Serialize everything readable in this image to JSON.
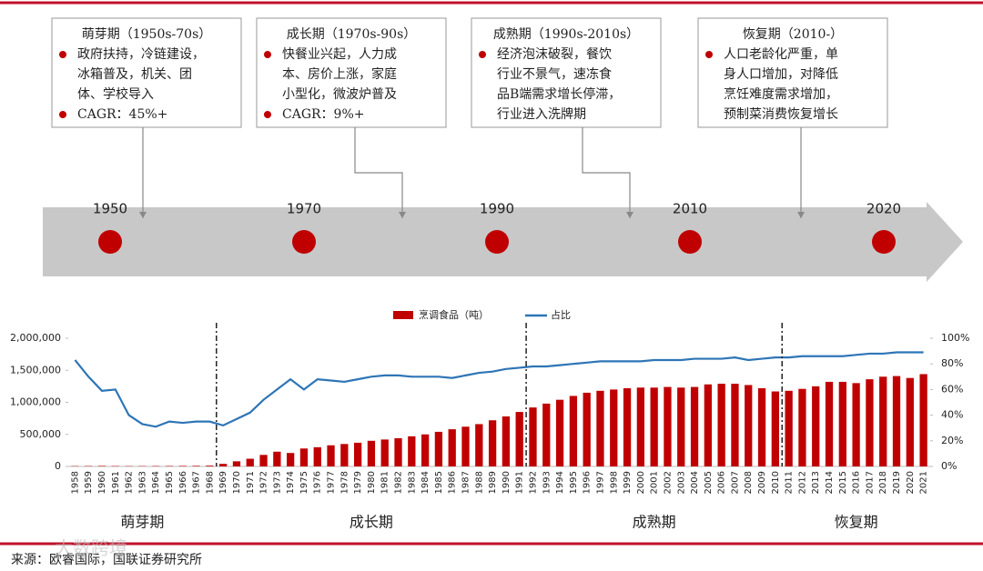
{
  "timeline": {
    "years": [
      "1950",
      "1970",
      "1990",
      "2010",
      "2020"
    ],
    "periods": [
      {
        "title": "萌芽期（1950s-70s）",
        "bullets": [
          {
            "lines": [
              "政府扶持，冷链建设，",
              "冰箱普及，机关、团",
              "体、学校导入"
            ]
          },
          {
            "lines": [
              "CAGR：45%+"
            ]
          }
        ]
      },
      {
        "title": "成长期（1970s-90s）",
        "bullets": [
          {
            "lines": [
              "快餐业兴起，人力成",
              "本、房价上涨，家庭",
              "小型化，微波炉普及"
            ]
          },
          {
            "lines": [
              "CAGR：9%+"
            ]
          }
        ]
      },
      {
        "title": "成熟期（1990s-2010s）",
        "bullets": [
          {
            "lines": [
              "经济泡沫破裂，餐饮",
              "行业不景气，速冻食",
              "品B端需求增长停滞，",
              "行业进入洗牌期"
            ]
          }
        ]
      },
      {
        "title": "恢复期（2010-）",
        "bullets": [
          {
            "lines": [
              "人口老龄化严重，单",
              "身人口增加，对降低",
              "烹饪难度需求增加，",
              "预制菜消费恢复增长"
            ]
          }
        ]
      }
    ]
  },
  "chart_data": {
    "type": "bar_line",
    "categories": [
      "1958",
      "1959",
      "1960",
      "1961",
      "1962",
      "1963",
      "1964",
      "1965",
      "1966",
      "1967",
      "1968",
      "1969",
      "1970",
      "1971",
      "1972",
      "1973",
      "1974",
      "1975",
      "1976",
      "1977",
      "1978",
      "1979",
      "1980",
      "1981",
      "1982",
      "1983",
      "1984",
      "1985",
      "1986",
      "1987",
      "1988",
      "1989",
      "1990",
      "1991",
      "1992",
      "1993",
      "1994",
      "1995",
      "1996",
      "1997",
      "1998",
      "1999",
      "2000",
      "2001",
      "2002",
      "2003",
      "2004",
      "2005",
      "2006",
      "2007",
      "2008",
      "2009",
      "2010",
      "2011",
      "2012",
      "2013",
      "2014",
      "2015",
      "2016",
      "2017",
      "2018",
      "2019",
      "2020",
      "2021"
    ],
    "series": [
      {
        "name": "烹调食品（吨）",
        "kind": "bar",
        "color": "#c00000",
        "values": [
          5000,
          6000,
          8000,
          6000,
          5000,
          5000,
          6000,
          7000,
          8000,
          9000,
          12000,
          40000,
          80000,
          120000,
          180000,
          230000,
          210000,
          280000,
          300000,
          330000,
          350000,
          370000,
          400000,
          420000,
          440000,
          470000,
          500000,
          540000,
          580000,
          620000,
          660000,
          720000,
          780000,
          850000,
          920000,
          980000,
          1040000,
          1100000,
          1150000,
          1180000,
          1200000,
          1220000,
          1230000,
          1230000,
          1240000,
          1230000,
          1240000,
          1280000,
          1290000,
          1290000,
          1270000,
          1220000,
          1170000,
          1180000,
          1210000,
          1250000,
          1320000,
          1320000,
          1300000,
          1360000,
          1400000,
          1410000,
          1380000,
          1440000
        ]
      },
      {
        "name": "占比",
        "kind": "line",
        "axis": "y2",
        "color": "#2e75b6",
        "values": [
          83,
          70,
          59,
          60,
          40,
          33,
          31,
          35,
          34,
          35,
          35,
          32,
          37,
          42,
          52,
          60,
          68,
          60,
          68,
          67,
          66,
          68,
          70,
          71,
          71,
          70,
          70,
          70,
          69,
          71,
          73,
          74,
          76,
          77,
          78,
          78,
          79,
          80,
          81,
          82,
          82,
          82,
          82,
          83,
          83,
          83,
          84,
          84,
          84,
          85,
          83,
          84,
          85,
          85,
          86,
          86,
          86,
          86,
          87,
          88,
          88,
          89,
          89,
          89
        ]
      }
    ],
    "ylim": [
      0,
      2000000
    ],
    "yticks": [
      0,
      {
        "value": 500000,
        "label": "500,000"
      },
      {
        "value": 1000000,
        "label": "1,000,000"
      },
      {
        "value": 1500000,
        "label": "1,500,000"
      },
      {
        "value": 2000000,
        "label": "2,000,000"
      }
    ],
    "y2lim": [
      0,
      100
    ],
    "y2ticks": [
      {
        "value": 0,
        "label": "0%"
      },
      {
        "value": 20,
        "label": "20%"
      },
      {
        "value": 40,
        "label": "40%"
      },
      {
        "value": 60,
        "label": "60%"
      },
      {
        "value": 80,
        "label": "80%"
      },
      {
        "value": 100,
        "label": "100%"
      }
    ],
    "legend": "top",
    "phases": [
      {
        "label": "萌芽期",
        "start": "1958"
      },
      {
        "label": "成长期",
        "start": "1969"
      },
      {
        "label": "成熟期",
        "start": "1992"
      },
      {
        "label": "恢复期",
        "start": "2011"
      }
    ]
  },
  "source": "来源：欧睿国际，国联证券研究所",
  "watermark": "大数跨境"
}
